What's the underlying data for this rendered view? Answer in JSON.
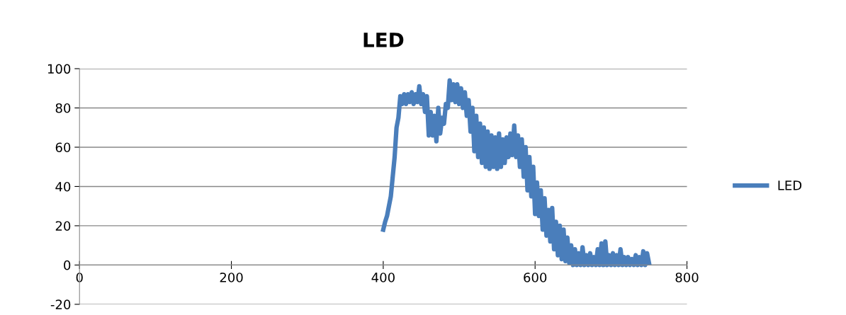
{
  "chart_data": {
    "type": "line",
    "title": "LED",
    "x": [
      400,
      402.5,
      405,
      407.5,
      410,
      412.5,
      415,
      417.5,
      420,
      422.5,
      425,
      427.5,
      430,
      432.5,
      435,
      437.5,
      440,
      442.5,
      445,
      447.5,
      450,
      452.5,
      455,
      457.5,
      460,
      462.5,
      465,
      467.5,
      470,
      472.5,
      475,
      477.5,
      480,
      482.5,
      485,
      487.5,
      490,
      492.5,
      495,
      497.5,
      500,
      502.5,
      505,
      507.5,
      510,
      512.5,
      515,
      517.5,
      520,
      522.5,
      525,
      527.5,
      530,
      532.5,
      535,
      537.5,
      540,
      542.5,
      545,
      547.5,
      550,
      552.5,
      555,
      557.5,
      560,
      562.5,
      565,
      567.5,
      570,
      572.5,
      575,
      577.5,
      580,
      582.5,
      585,
      587.5,
      590,
      592.5,
      595,
      597.5,
      600,
      602.5,
      605,
      607.5,
      610,
      612.5,
      615,
      617.5,
      620,
      622.5,
      625,
      627.5,
      630,
      632.5,
      635,
      637.5,
      640,
      642.5,
      645,
      647.5,
      650,
      652.5,
      655,
      657.5,
      660,
      662.5,
      665,
      667.5,
      670,
      672.5,
      675,
      677.5,
      680,
      682.5,
      685,
      687.5,
      690,
      692.5,
      695,
      697.5,
      700,
      702.5,
      705,
      707.5,
      710,
      712.5,
      715,
      717.5,
      720,
      722.5,
      725,
      727.5,
      730,
      732.5,
      735,
      737.5,
      740,
      742.5,
      745,
      747.5,
      750
    ],
    "series": [
      {
        "name": "LED",
        "color": "#4a7ebb",
        "values": [
          18,
          22,
          25,
          30,
          35,
          45,
          55,
          70,
          75,
          86,
          82,
          87,
          82,
          87,
          83,
          88,
          82,
          87,
          83,
          91,
          82,
          87,
          78,
          86,
          66,
          78,
          66,
          76,
          63,
          80,
          67,
          75,
          72,
          82,
          80,
          94,
          84,
          92,
          83,
          92,
          82,
          90,
          80,
          88,
          76,
          84,
          68,
          80,
          58,
          76,
          55,
          72,
          52,
          70,
          50,
          68,
          49,
          66,
          50,
          65,
          49,
          67,
          50,
          64,
          52,
          65,
          55,
          67,
          56,
          71,
          55,
          66,
          50,
          64,
          45,
          60,
          38,
          55,
          35,
          50,
          26,
          42,
          25,
          38,
          18,
          34,
          15,
          28,
          12,
          29,
          8,
          22,
          5,
          20,
          3,
          18,
          2,
          14,
          1,
          10,
          0,
          8,
          0,
          6,
          0,
          9,
          0,
          5,
          0,
          6,
          0,
          4,
          0,
          8,
          0,
          11,
          0,
          12,
          0,
          5,
          0,
          6,
          0,
          5,
          0,
          8,
          0,
          4,
          0,
          4,
          0,
          3,
          0,
          5,
          0,
          4,
          0,
          7,
          0,
          6,
          1
        ]
      }
    ],
    "xlim": [
      0,
      800
    ],
    "xticks": [
      0,
      200,
      400,
      600,
      800
    ],
    "ylim": [
      -20,
      100
    ],
    "yticks": [
      -20,
      0,
      20,
      40,
      60,
      80,
      100
    ],
    "grid": "y",
    "legend": "right",
    "marker": "none",
    "line_style": "solid"
  }
}
